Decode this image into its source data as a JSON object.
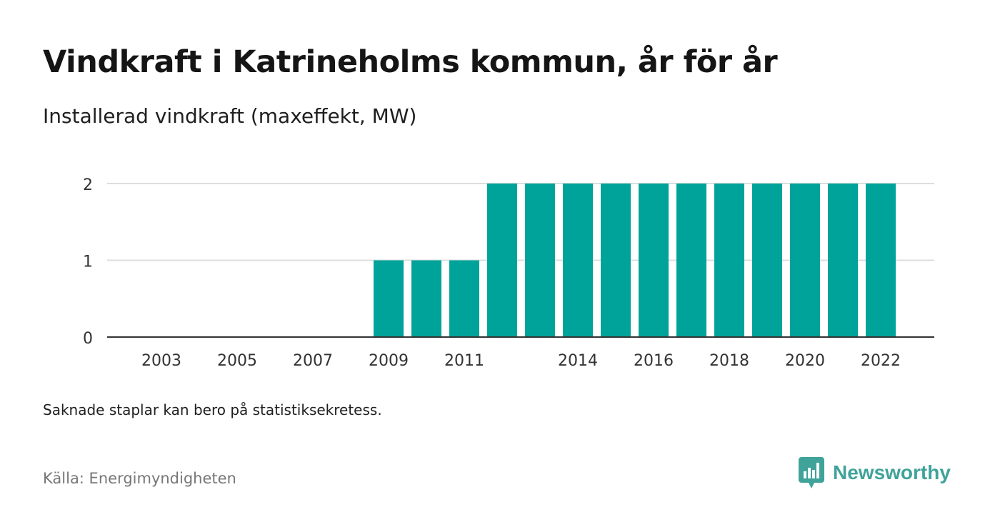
{
  "title": "Vindkraft i Katrineholms kommun, år för år",
  "subtitle": "Installerad vindkraft (maxeffekt, MW)",
  "note": "Saknade staplar kan bero på statistiksekretess.",
  "source": "Källa: Energimyndigheten",
  "brand": {
    "name": "Newsworthy",
    "color": "#3fa399",
    "icon": "newsworthy-logo-icon"
  },
  "colors": {
    "bar": "#00a399",
    "grid": "#dddddd",
    "axis": "#333333"
  },
  "chart_data": {
    "type": "bar",
    "categories": [
      "2003",
      "2004",
      "2005",
      "2006",
      "2007",
      "2008",
      "2009",
      "2010",
      "2011",
      "2012",
      "2013",
      "2014",
      "2015",
      "2016",
      "2017",
      "2018",
      "2019",
      "2020",
      "2021",
      "2022"
    ],
    "values": [
      0,
      0,
      0,
      0,
      0,
      0,
      1,
      1,
      1,
      2,
      2,
      2,
      2,
      2,
      2,
      2,
      2,
      2,
      2,
      2
    ],
    "x_tick_labels": [
      "2003",
      "2005",
      "2007",
      "2009",
      "2011",
      "2014",
      "2016",
      "2018",
      "2020",
      "2022"
    ],
    "y_ticks": [
      0,
      1,
      2
    ],
    "ylim": [
      0,
      2
    ],
    "grid": true,
    "legend": "none",
    "title": "Vindkraft i Katrineholms kommun, år för år",
    "xlabel": "",
    "ylabel": ""
  }
}
